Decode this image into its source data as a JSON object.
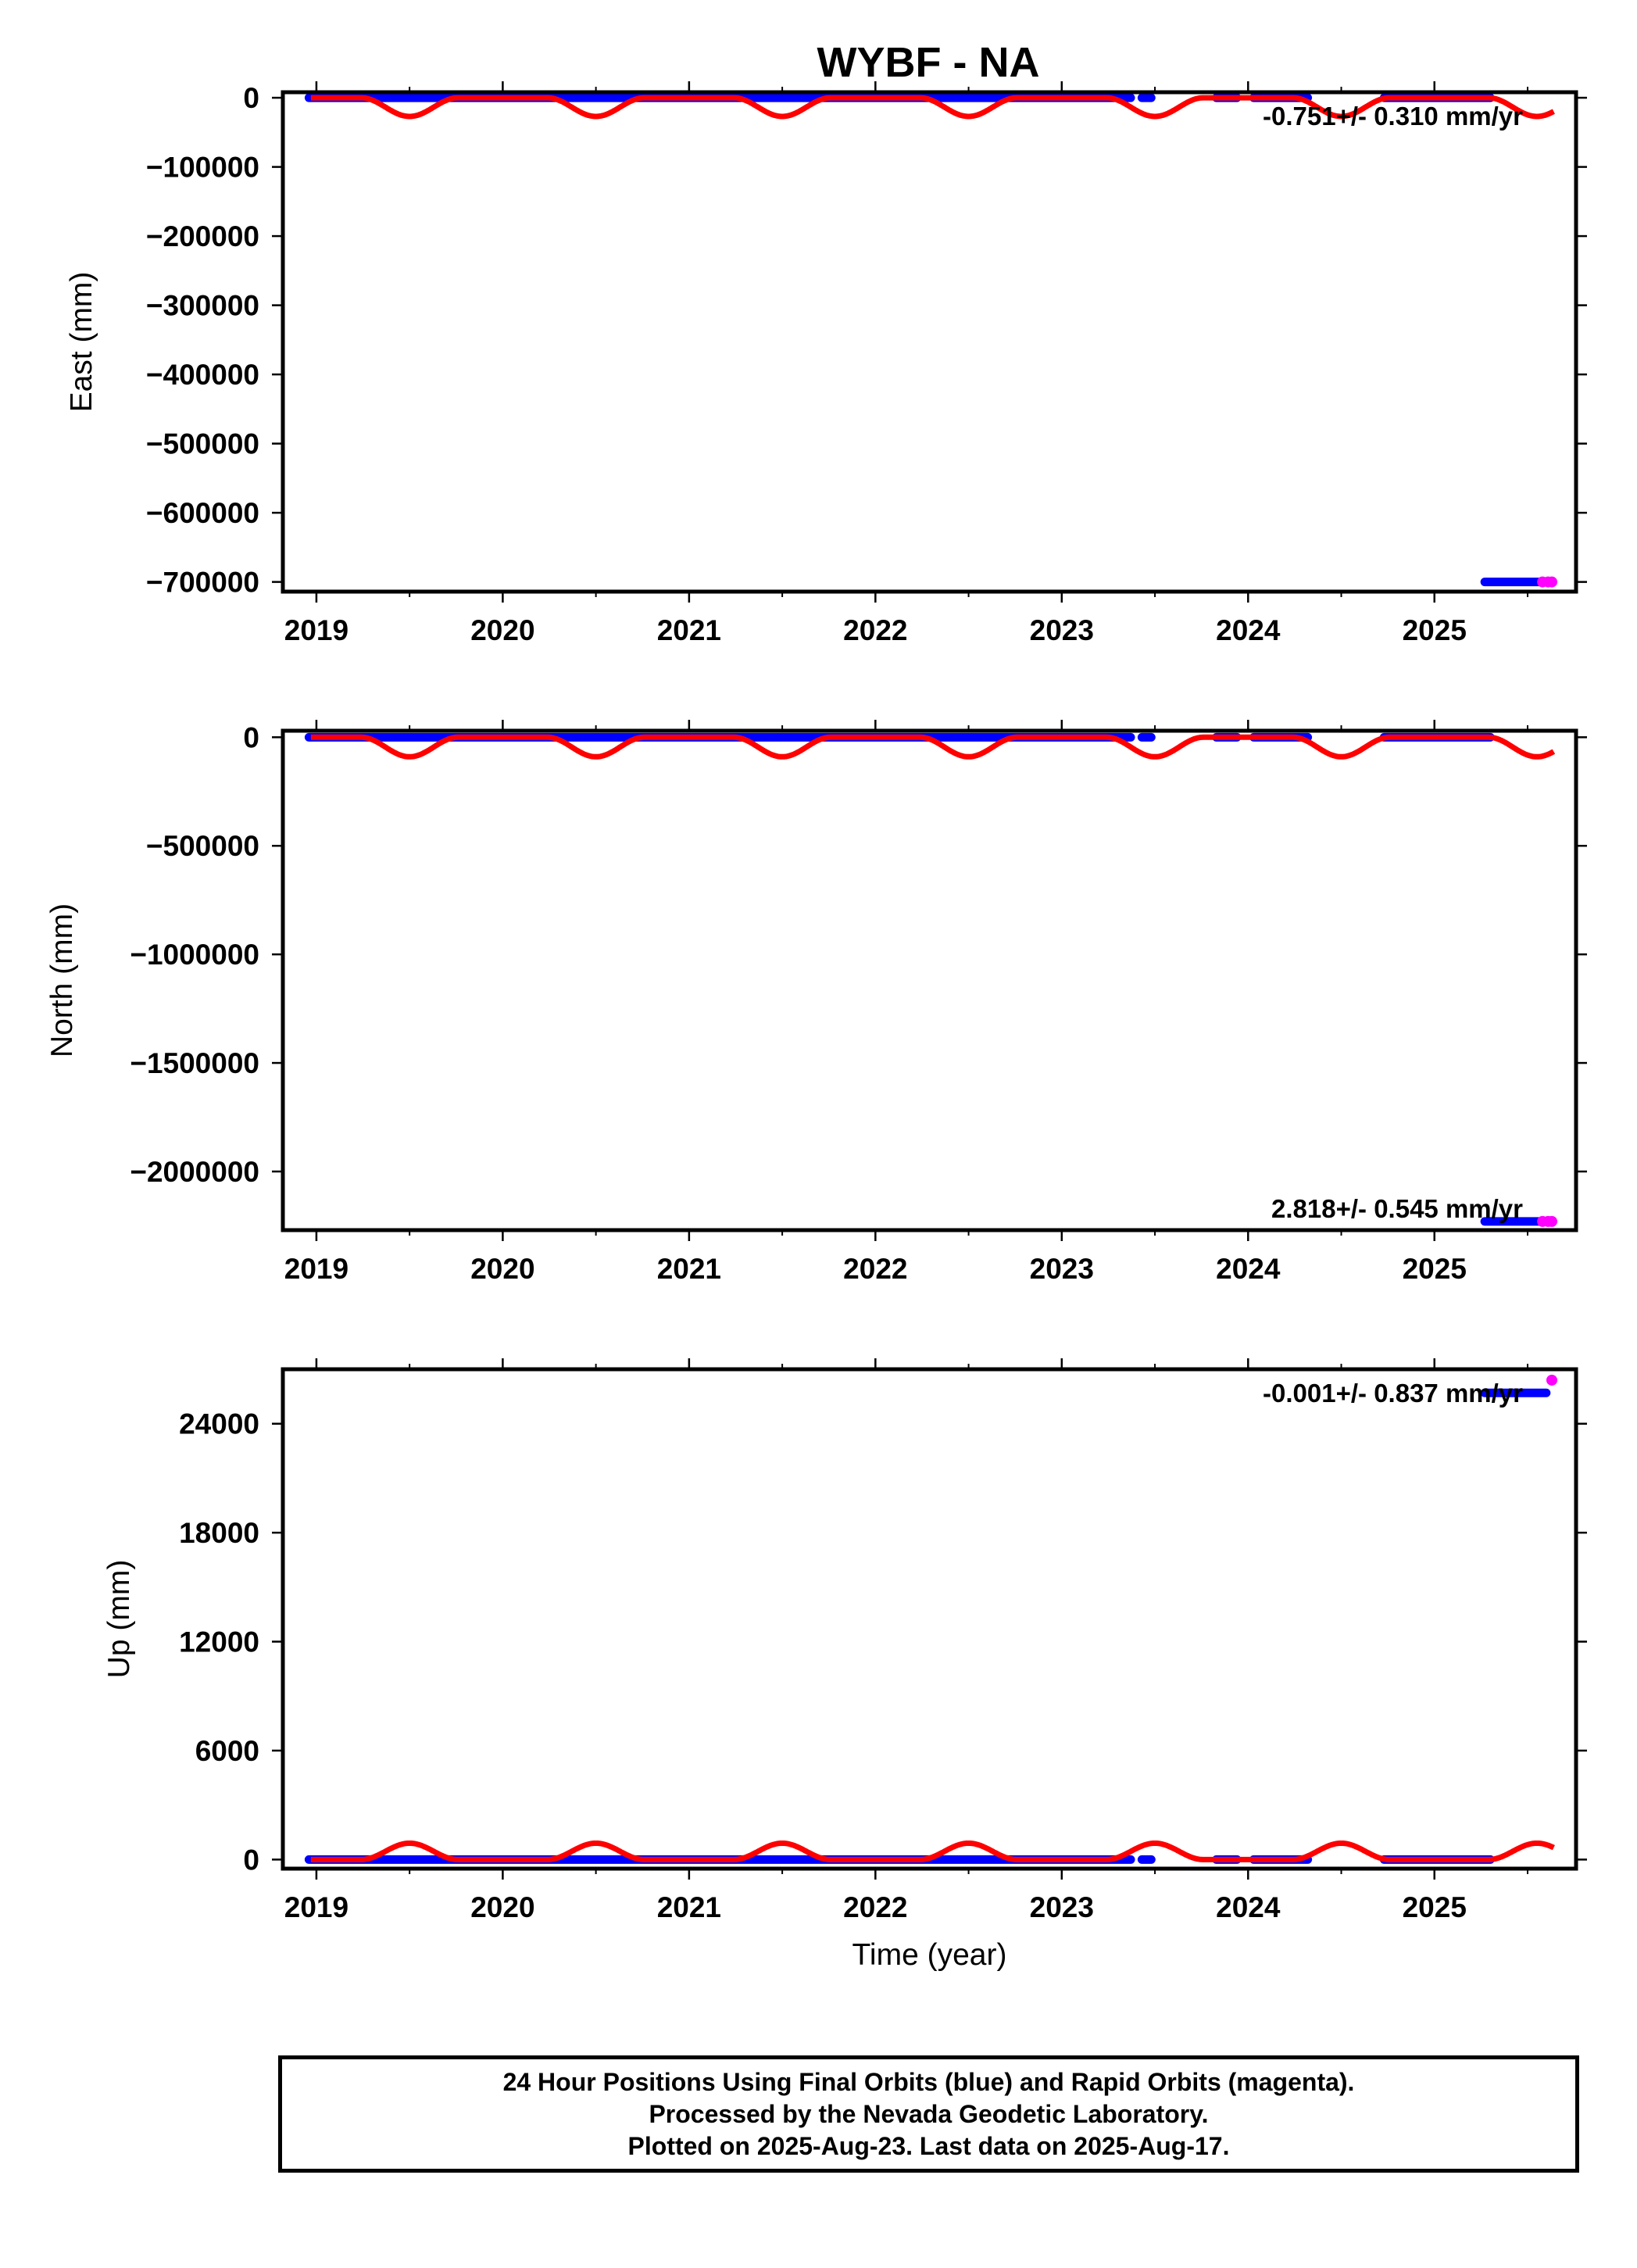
{
  "title": "WYBF - NA",
  "colors": {
    "final": "#0000ff",
    "rapid": "#ff00ff",
    "model": "#ff0000",
    "frame": "#000000"
  },
  "chart_data": [
    {
      "type": "scatter",
      "ylabel": "East (mm)",
      "xlabel": "",
      "xlim": [
        2018.82,
        2025.76
      ],
      "ylim": [
        -714000,
        8000
      ],
      "x_ticks": [
        2019,
        2020,
        2021,
        2022,
        2023,
        2024,
        2025
      ],
      "x_tick_labels": [
        "2019",
        "2020",
        "2021",
        "2022",
        "2023",
        "2024",
        "2025"
      ],
      "y_ticks": [
        0,
        -100000,
        -200000,
        -300000,
        -400000,
        -500000,
        -600000,
        -700000
      ],
      "y_tick_labels": [
        "0",
        "−100000",
        "−200000",
        "−300000",
        "−400000",
        "−500000",
        "−600000",
        "−700000"
      ],
      "rate_label": "-0.751+/- 0.310 mm/yr",
      "rate_position": "top-right",
      "final_segments": [
        [
          2018.96,
          2023.37
        ],
        [
          2023.43,
          2023.48
        ],
        [
          2023.83,
          2023.94
        ],
        [
          2024.03,
          2024.32
        ],
        [
          2024.73,
          2025.3
        ]
      ],
      "final_level": 0,
      "final_offset_segments": [
        [
          2025.27,
          2025.57
        ]
      ],
      "final_offset_level": -700000,
      "rapid_points": [
        {
          "x": 2025.58,
          "y": -700000
        },
        {
          "x": 2025.61,
          "y": -700000
        },
        {
          "x": 2025.63,
          "y": -700000
        }
      ],
      "model": {
        "baseline": 0,
        "dip_depth": -27000,
        "dip_centers": [
          2019.5,
          2020.5,
          2021.5,
          2022.5,
          2023.5,
          2024.5,
          2025.55
        ],
        "x_range": [
          2018.97,
          2025.64
        ]
      }
    },
    {
      "type": "scatter",
      "ylabel": "North (mm)",
      "xlabel": "",
      "xlim": [
        2018.82,
        2025.76
      ],
      "ylim": [
        -2270000,
        30000
      ],
      "x_ticks": [
        2019,
        2020,
        2021,
        2022,
        2023,
        2024,
        2025
      ],
      "x_tick_labels": [
        "2019",
        "2020",
        "2021",
        "2022",
        "2023",
        "2024",
        "2025"
      ],
      "y_ticks": [
        0,
        -500000,
        -1000000,
        -1500000,
        -2000000
      ],
      "y_tick_labels": [
        "0",
        "−500000",
        "−1000000",
        "−1500000",
        "−2000000"
      ],
      "rate_label": "2.818+/- 0.545 mm/yr",
      "rate_position": "bottom-right",
      "final_segments": [
        [
          2018.96,
          2023.37
        ],
        [
          2023.43,
          2023.48
        ],
        [
          2023.83,
          2023.94
        ],
        [
          2024.03,
          2024.32
        ],
        [
          2024.73,
          2025.3
        ]
      ],
      "final_level": 0,
      "final_offset_segments": [
        [
          2025.27,
          2025.57
        ]
      ],
      "final_offset_level": -2230000,
      "rapid_points": [
        {
          "x": 2025.58,
          "y": -2230000
        },
        {
          "x": 2025.61,
          "y": -2230000
        },
        {
          "x": 2025.63,
          "y": -2230000
        }
      ],
      "model": {
        "baseline": 0,
        "dip_depth": -90000,
        "dip_centers": [
          2019.5,
          2020.5,
          2021.5,
          2022.5,
          2023.5,
          2024.5,
          2025.55
        ],
        "x_range": [
          2018.97,
          2025.64
        ]
      }
    },
    {
      "type": "scatter",
      "ylabel": "Up (mm)",
      "xlabel": "Time (year)",
      "xlim": [
        2018.82,
        2025.76
      ],
      "ylim": [
        -500,
        27000
      ],
      "x_ticks": [
        2019,
        2020,
        2021,
        2022,
        2023,
        2024,
        2025
      ],
      "x_tick_labels": [
        "2019",
        "2020",
        "2021",
        "2022",
        "2023",
        "2024",
        "2025"
      ],
      "y_ticks": [
        0,
        6000,
        12000,
        18000,
        24000
      ],
      "y_tick_labels": [
        "0",
        "6000",
        "12000",
        "18000",
        "24000"
      ],
      "rate_label": "-0.001+/- 0.837 mm/yr",
      "rate_position": "top-right",
      "final_segments": [
        [
          2018.96,
          2023.37
        ],
        [
          2023.43,
          2023.48
        ],
        [
          2023.83,
          2023.94
        ],
        [
          2024.03,
          2024.32
        ],
        [
          2024.73,
          2025.3
        ]
      ],
      "final_level": 0,
      "final_offset_segments": [
        [
          2025.27,
          2025.6
        ]
      ],
      "final_offset_level": 25700,
      "rapid_points": [
        {
          "x": 2025.63,
          "y": 26400
        }
      ],
      "model": {
        "baseline": 0,
        "dip_depth": 900,
        "dip_centers": [
          2019.5,
          2020.5,
          2021.5,
          2022.5,
          2023.5,
          2024.5,
          2025.55
        ],
        "x_range": [
          2018.97,
          2025.64
        ]
      }
    }
  ],
  "footer": {
    "line1": "24 Hour Positions Using Final Orbits (blue) and Rapid Orbits (magenta).",
    "line2": "Processed by the Nevada Geodetic Laboratory.",
    "line3": "Plotted on 2025-Aug-23. Last data on 2025-Aug-17."
  }
}
